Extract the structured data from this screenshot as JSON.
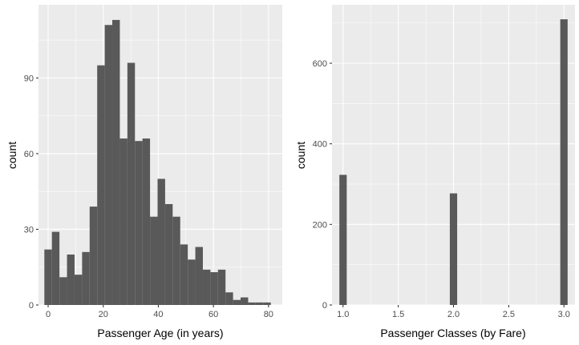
{
  "chart_data": [
    {
      "type": "bar",
      "histogram": true,
      "xlabel": "Passenger Age (in years)",
      "ylabel": "count",
      "xlim": [
        -3.5,
        85
      ],
      "ylim": [
        0,
        119
      ],
      "xticks": [
        0,
        20,
        40,
        60,
        80
      ],
      "yticks": [
        0,
        30,
        60,
        90
      ],
      "bin_width": 2.74,
      "bin_start": -1.37,
      "values": [
        22,
        29,
        11,
        20,
        12,
        21,
        39,
        95,
        111,
        113,
        66,
        96,
        65,
        66,
        35,
        50,
        40,
        35,
        24,
        18,
        23,
        14,
        13,
        14,
        5,
        2,
        3,
        1,
        1,
        1
      ],
      "bar_color": "#595959",
      "panel_color": "#ebebeb",
      "grid": true
    },
    {
      "type": "bar",
      "histogram": true,
      "xlabel": "Passenger Classes (by Fare)",
      "ylabel": "count",
      "xlim": [
        0.9,
        3.1
      ],
      "ylim": [
        0,
        745
      ],
      "xticks": [
        "1.0",
        "1.5",
        "2.0",
        "2.5",
        "3.0"
      ],
      "yticks": [
        0,
        200,
        400,
        600
      ],
      "bin_width": 0.0667,
      "categories": [
        1,
        2,
        3
      ],
      "values": [
        323,
        277,
        709
      ],
      "bar_color": "#595959",
      "panel_color": "#ebebeb",
      "grid": true
    }
  ]
}
